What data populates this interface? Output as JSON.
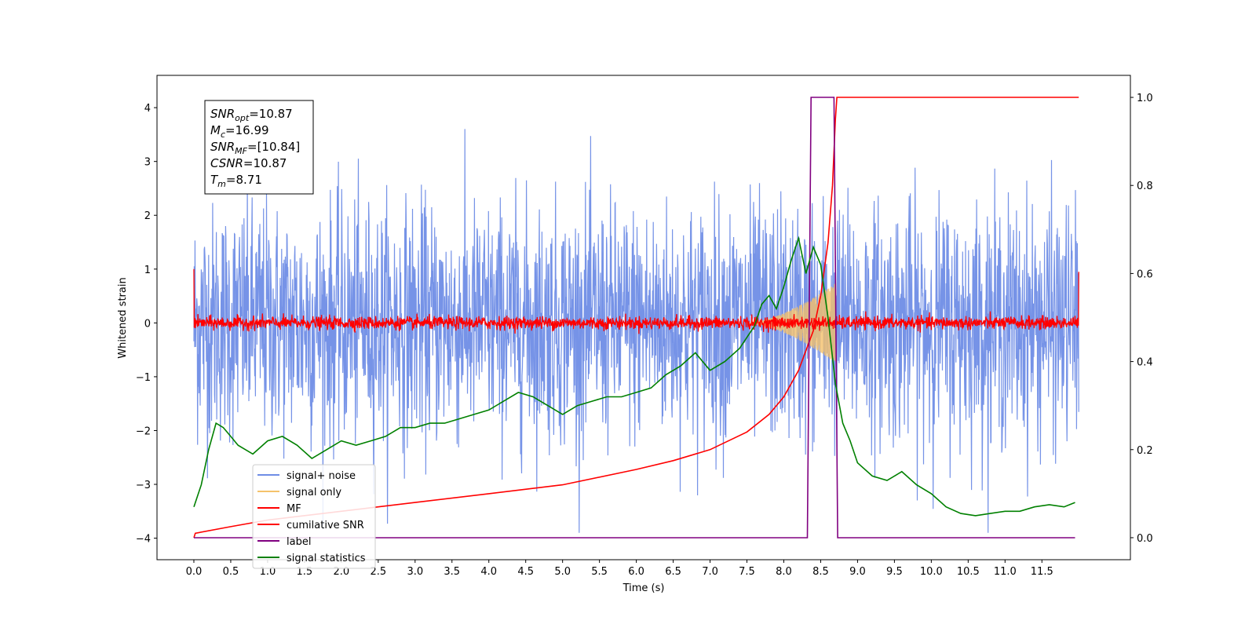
{
  "chart_data": {
    "type": "line",
    "xlabel": "Time (s)",
    "ylabel_left": "Whitened strain",
    "ylabel_right": "",
    "xlim": [
      -0.5,
      12.7
    ],
    "ylim_left": [
      -4.4,
      4.6
    ],
    "ylim_right": [
      -0.05,
      1.05
    ],
    "x_ticks": [
      "0.0",
      "0.5",
      "1.0",
      "1.5",
      "2.0",
      "2.5",
      "3.0",
      "3.5",
      "4.0",
      "4.5",
      "5.0",
      "5.5",
      "6.0",
      "6.5",
      "7.0",
      "7.5",
      "8.0",
      "8.5",
      "9.0",
      "9.5",
      "10.0",
      "10.5",
      "11.0",
      "11.5"
    ],
    "y_ticks_left": [
      "4",
      "3",
      "2",
      "1",
      "0",
      "−1",
      "−2",
      "−3",
      "−4"
    ],
    "y_ticks_right": [
      "1.0",
      "0.8",
      "0.6",
      "0.4",
      "0.2",
      "0.0"
    ],
    "grid": false,
    "legend_position": "lower-left",
    "legend": [
      {
        "label": "signal+ noise",
        "color": "#6f8de6"
      },
      {
        "label": "signal only",
        "color": "#f5c26b"
      },
      {
        "label": "MF",
        "color": "#ff0000"
      },
      {
        "label": "cumilative SNR",
        "color": "#ff0000"
      },
      {
        "label": "label",
        "color": "#800080"
      },
      {
        "label": "signal statistics",
        "color": "#008000"
      }
    ],
    "info_box": [
      {
        "main": "SNR",
        "sub": "opt",
        "rest": "=10.87"
      },
      {
        "main": "M",
        "sub": "c",
        "rest": "=16.99"
      },
      {
        "main": "SNR",
        "sub": "MF",
        "rest": "=[10.84]"
      },
      {
        "main": "CSNR",
        "sub": "",
        "rest": "=10.87"
      },
      {
        "main": "T",
        "sub": "m",
        "rest": "=8.71"
      }
    ],
    "series": [
      {
        "name": "signal+ noise",
        "axis": "left",
        "style": "noise",
        "x_range": [
          0,
          12.0
        ],
        "amplitude_sd": 1.1,
        "color": "#6f8de6"
      },
      {
        "name": "signal only",
        "axis": "left",
        "style": "chirp",
        "x_range": [
          7.5,
          8.71
        ],
        "peak_amplitude": 0.75,
        "color": "#f5c26b"
      },
      {
        "name": "MF",
        "axis": "left",
        "style": "noise",
        "x_range": [
          0,
          12.0
        ],
        "amplitude_sd": 0.06,
        "color": "#ff0000"
      },
      {
        "name": "cumilative SNR",
        "axis": "right",
        "color": "#ff0000",
        "x": [
          0.0,
          0.02,
          0.5,
          1.0,
          2.0,
          3.0,
          4.0,
          5.0,
          6.0,
          6.5,
          7.0,
          7.5,
          7.8,
          8.0,
          8.2,
          8.4,
          8.5,
          8.6,
          8.66,
          8.7,
          8.72,
          12.0
        ],
        "y": [
          0.0,
          0.01,
          0.025,
          0.04,
          0.06,
          0.08,
          0.1,
          0.12,
          0.155,
          0.175,
          0.2,
          0.24,
          0.28,
          0.32,
          0.38,
          0.47,
          0.55,
          0.67,
          0.8,
          0.95,
          1.0,
          1.0
        ]
      },
      {
        "name": "label",
        "axis": "right",
        "color": "#800080",
        "x": [
          0.0,
          8.32,
          8.37,
          8.68,
          8.73,
          11.95
        ],
        "y": [
          0.0,
          0.0,
          1.0,
          1.0,
          0.0,
          0.0
        ]
      },
      {
        "name": "signal statistics",
        "axis": "right",
        "color": "#008000",
        "x": [
          0.0,
          0.1,
          0.2,
          0.3,
          0.4,
          0.5,
          0.6,
          0.7,
          0.8,
          1.0,
          1.2,
          1.4,
          1.6,
          1.8,
          2.0,
          2.2,
          2.4,
          2.6,
          2.8,
          3.0,
          3.2,
          3.4,
          3.6,
          3.8,
          4.0,
          4.2,
          4.4,
          4.6,
          4.8,
          5.0,
          5.2,
          5.4,
          5.6,
          5.8,
          6.0,
          6.2,
          6.4,
          6.6,
          6.8,
          7.0,
          7.2,
          7.4,
          7.6,
          7.7,
          7.8,
          7.9,
          8.0,
          8.1,
          8.2,
          8.3,
          8.4,
          8.5,
          8.6,
          8.7,
          8.8,
          8.9,
          9.0,
          9.2,
          9.4,
          9.6,
          9.8,
          10.0,
          10.2,
          10.4,
          10.6,
          10.8,
          11.0,
          11.2,
          11.4,
          11.6,
          11.8,
          11.95
        ],
        "y": [
          0.07,
          0.12,
          0.2,
          0.26,
          0.25,
          0.23,
          0.21,
          0.2,
          0.19,
          0.22,
          0.23,
          0.21,
          0.18,
          0.2,
          0.22,
          0.21,
          0.22,
          0.23,
          0.25,
          0.25,
          0.26,
          0.26,
          0.27,
          0.28,
          0.29,
          0.31,
          0.33,
          0.32,
          0.3,
          0.28,
          0.3,
          0.31,
          0.32,
          0.32,
          0.33,
          0.34,
          0.37,
          0.39,
          0.42,
          0.38,
          0.4,
          0.43,
          0.48,
          0.53,
          0.55,
          0.52,
          0.57,
          0.63,
          0.68,
          0.6,
          0.66,
          0.62,
          0.5,
          0.35,
          0.26,
          0.22,
          0.17,
          0.14,
          0.13,
          0.15,
          0.12,
          0.1,
          0.07,
          0.055,
          0.05,
          0.055,
          0.06,
          0.06,
          0.07,
          0.075,
          0.07,
          0.08
        ]
      }
    ]
  }
}
